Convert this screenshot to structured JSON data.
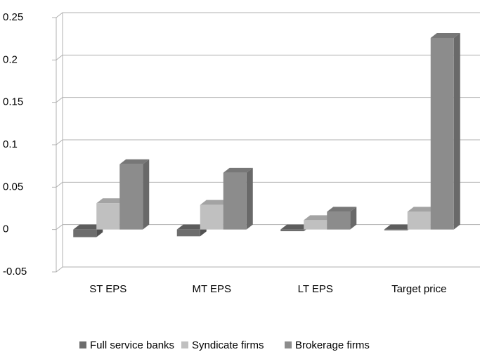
{
  "chart_data": {
    "type": "bar3d",
    "categories": [
      "ST EPS",
      "MT EPS",
      "LT EPS",
      "Target price"
    ],
    "series": [
      {
        "name": "Full service banks",
        "color": "#6d6d6d",
        "values": [
          -0.009,
          -0.008,
          -0.002,
          -0.001
        ]
      },
      {
        "name": "Syndicate firms",
        "color": "#c0c0c0",
        "values": [
          0.031,
          0.029,
          0.011,
          0.021
        ]
      },
      {
        "name": "Brokerage firms",
        "color": "#8c8c8c",
        "values": [
          0.077,
          0.067,
          0.021,
          0.226
        ]
      }
    ],
    "ylim": [
      -0.05,
      0.25
    ],
    "yticks": [
      {
        "value": -0.05,
        "label": "-0.05"
      },
      0,
      0.05,
      0.1,
      0.15,
      0.2,
      0.25
    ],
    "grid": true,
    "legend": "bottom"
  }
}
